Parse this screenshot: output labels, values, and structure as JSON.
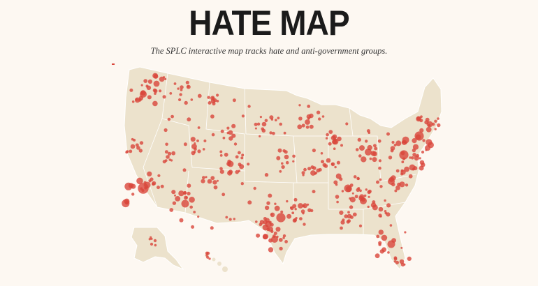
{
  "header": {
    "title": "HATE MAP",
    "subtitle": "The SPLC interactive map tracks hate and anti-government groups."
  }
}
